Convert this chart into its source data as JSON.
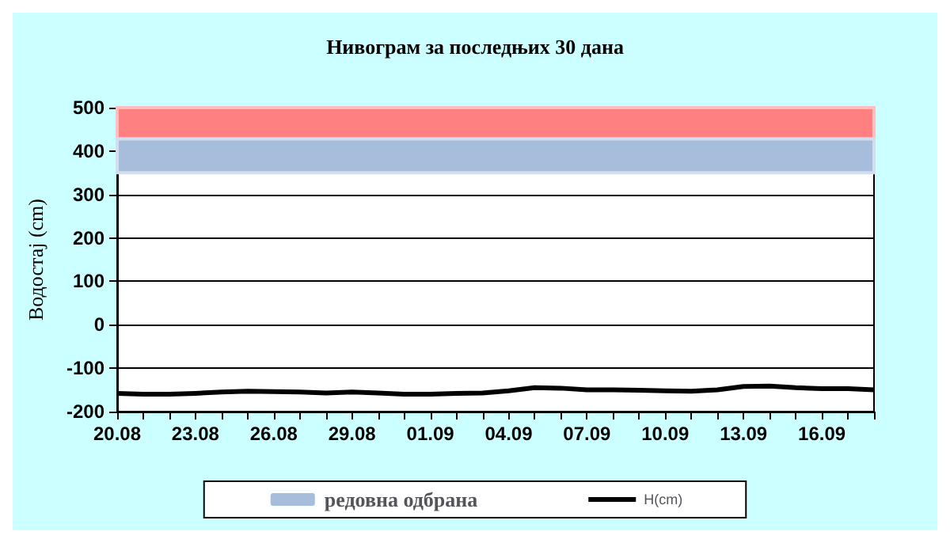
{
  "chart_data": {
    "type": "line",
    "title": "Нивограм за последњих 30 дана",
    "ylabel": "Водостај (cm)",
    "categories": [
      "20.08",
      null,
      null,
      "23.08",
      null,
      null,
      "26.08",
      null,
      null,
      "29.08",
      null,
      null,
      "01.09",
      null,
      null,
      "04.09",
      null,
      null,
      "07.09",
      null,
      null,
      "10.09",
      null,
      null,
      "13.09",
      null,
      null,
      "16.09",
      null,
      null
    ],
    "series": [
      {
        "name": "H(cm)",
        "color": "#000000",
        "values": [
          -158,
          -160,
          -160,
          -158,
          -155,
          -153,
          -154,
          -155,
          -157,
          -155,
          -157,
          -160,
          -160,
          -158,
          -157,
          -152,
          -145,
          -146,
          -150,
          -150,
          -151,
          -152,
          -153,
          -150,
          -142,
          -141,
          -145,
          -147,
          -147,
          -150
        ]
      }
    ],
    "ylim": [
      -200,
      500
    ],
    "yticks": [
      -200,
      -100,
      0,
      100,
      200,
      300,
      400,
      500
    ],
    "grid": "y",
    "legend": "bottom",
    "marker": "none",
    "line_style": "solid",
    "bands": [
      {
        "axis": "y",
        "from": 428,
        "to": 500,
        "color": "#ff8080"
      },
      {
        "axis": "y",
        "from": 350,
        "to": 428,
        "label": "редовна одбрана",
        "color": "#a6bddb"
      }
    ]
  }
}
